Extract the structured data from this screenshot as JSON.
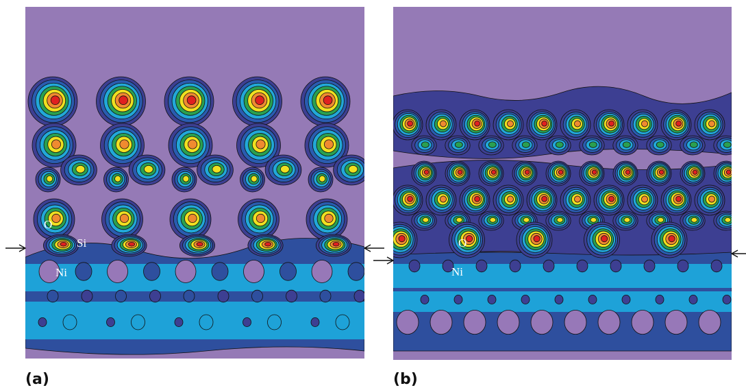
{
  "panels": [
    {
      "label": "(a)",
      "atoms": [
        "O",
        "Si",
        "Ni"
      ]
    },
    {
      "label": "(b)",
      "atoms": [
        "O",
        "Ni"
      ]
    }
  ]
}
